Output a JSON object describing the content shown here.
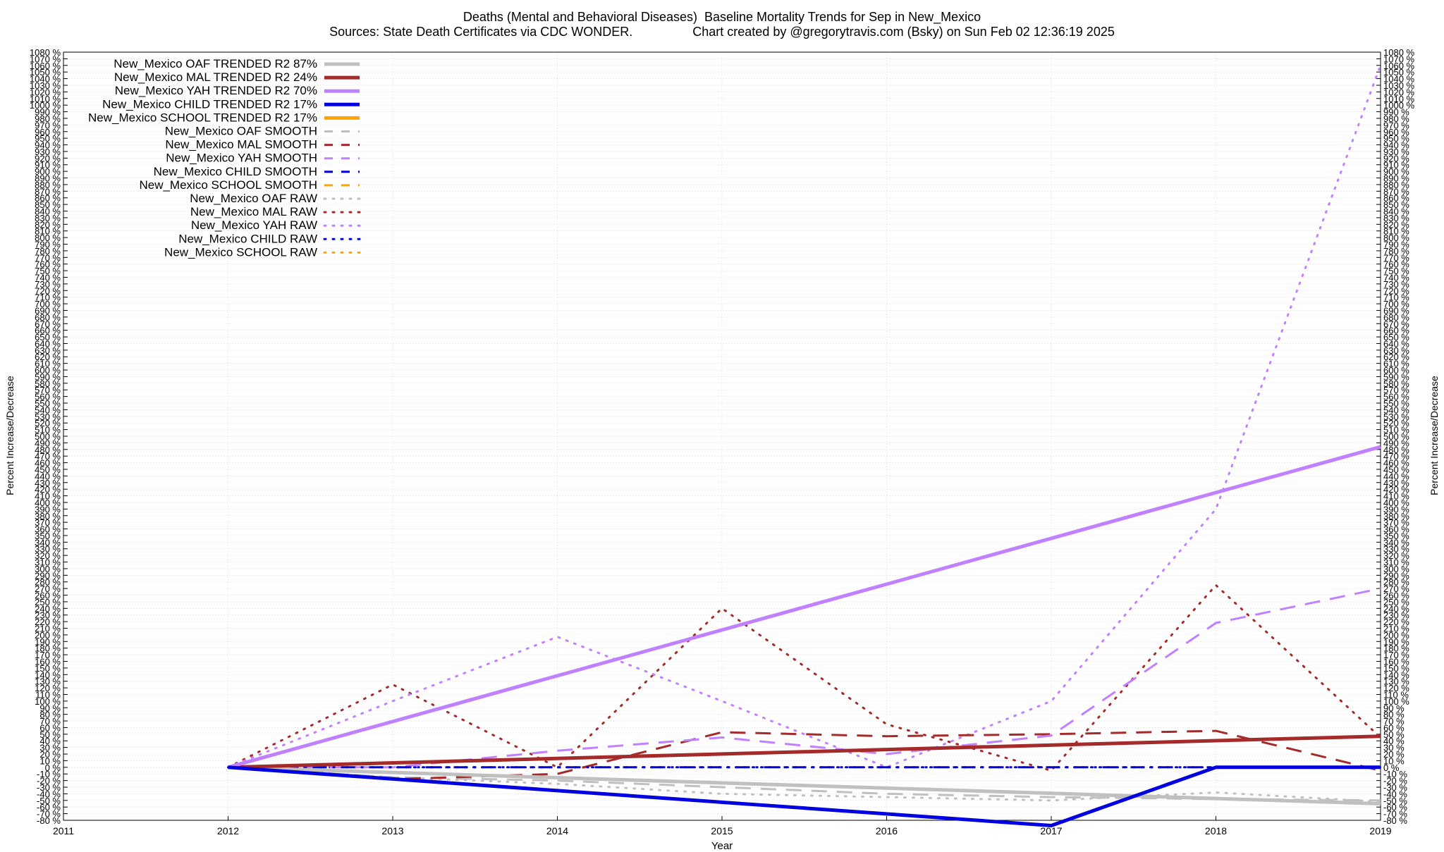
{
  "title": {
    "line1": "Deaths (Mental and Behavioral Diseases)  Baseline Mortality Trends for Sep in New_Mexico",
    "line2": "Sources: State Death Certificates via CDC WONDER.                 Chart created by @gregorytravis.com (Bsky) on Sun Feb 02 12:36:19 2025"
  },
  "chart_data": {
    "type": "line",
    "xlabel": "Year",
    "ylabel_left": "Percent Increase/Decrease",
    "ylabel_right": "Percent Increase/Decrease",
    "xlim": [
      2011,
      2019
    ],
    "ylim": [
      -80,
      1080
    ],
    "x_ticks": [
      2011,
      2012,
      2013,
      2014,
      2015,
      2016,
      2017,
      2018,
      2019
    ],
    "y_tick_step": 10,
    "y_tick_suffix": " %",
    "grid": true,
    "legend_position": "top-left",
    "series": [
      {
        "name": "New_Mexico OAF TRENDED R2  87%",
        "style": "trend",
        "color": "#c0c0c0",
        "x": [
          2012,
          2019
        ],
        "y": [
          0,
          -55
        ]
      },
      {
        "name": "New_Mexico MAL TRENDED R2  24%",
        "style": "trend",
        "color": "#a52a2a",
        "x": [
          2012,
          2019
        ],
        "y": [
          0,
          47
        ]
      },
      {
        "name": "New_Mexico YAH TRENDED R2  70%",
        "style": "trend",
        "color": "#c080ff",
        "x": [
          2012,
          2019
        ],
        "y": [
          0,
          484
        ]
      },
      {
        "name": "New_Mexico CHILD TRENDED R2  17%",
        "style": "trend",
        "color": "#0000e0",
        "x": [
          2012,
          2017,
          2018,
          2019
        ],
        "y": [
          0,
          -88,
          0,
          0
        ]
      },
      {
        "name": "New_Mexico SCHOOL TRENDED R2  17%",
        "style": "trend",
        "color": "#ffa500",
        "x": [],
        "y": []
      },
      {
        "name": "New_Mexico OAF SMOOTH",
        "style": "smooth",
        "color": "#c0c0c0",
        "x": [
          2012,
          2013,
          2014,
          2015,
          2016,
          2017,
          2018,
          2019
        ],
        "y": [
          0,
          -15,
          -20,
          -30,
          -40,
          -45,
          -48,
          -50
        ]
      },
      {
        "name": "New_Mexico MAL SMOOTH",
        "style": "smooth",
        "color": "#a52a2a",
        "x": [
          2012,
          2013,
          2014,
          2015,
          2016,
          2017,
          2018,
          2019
        ],
        "y": [
          0,
          -18,
          -10,
          53,
          47,
          50,
          55,
          -5
        ]
      },
      {
        "name": "New_Mexico YAH SMOOTH",
        "style": "smooth",
        "color": "#c080ff",
        "x": [
          2012,
          2013,
          2014,
          2015,
          2016,
          2017,
          2018,
          2019
        ],
        "y": [
          0,
          0,
          25,
          45,
          20,
          48,
          218,
          270
        ]
      },
      {
        "name": "New_Mexico CHILD SMOOTH",
        "style": "smooth",
        "color": "#0000e0",
        "x": [
          2012,
          2018,
          2019
        ],
        "y": [
          0,
          0,
          0
        ]
      },
      {
        "name": "New_Mexico SCHOOL SMOOTH",
        "style": "smooth",
        "color": "#ffa500",
        "x": [],
        "y": []
      },
      {
        "name": "New_Mexico OAF RAW",
        "style": "raw",
        "color": "#c0c0c0",
        "x": [
          2012,
          2013,
          2014,
          2015,
          2016,
          2017,
          2018,
          2019
        ],
        "y": [
          0,
          -15,
          -25,
          -40,
          -45,
          -50,
          -38,
          -52
        ]
      },
      {
        "name": "New_Mexico MAL RAW",
        "style": "raw",
        "color": "#a52a2a",
        "x": [
          2012,
          2013,
          2014,
          2015,
          2016,
          2017,
          2018,
          2019
        ],
        "y": [
          0,
          125,
          0,
          240,
          65,
          -5,
          275,
          45
        ]
      },
      {
        "name": "New_Mexico YAH RAW",
        "style": "raw",
        "color": "#c080ff",
        "x": [
          2012,
          2013,
          2014,
          2015,
          2016,
          2017,
          2018,
          2019
        ],
        "y": [
          0,
          100,
          197,
          100,
          0,
          100,
          390,
          1060
        ]
      },
      {
        "name": "New_Mexico CHILD RAW",
        "style": "raw",
        "color": "#0000e0",
        "x": [
          2012,
          2018,
          2019
        ],
        "y": [
          0,
          0,
          0
        ]
      },
      {
        "name": "New_Mexico SCHOOL RAW",
        "style": "raw",
        "color": "#ffa500",
        "x": [],
        "y": []
      }
    ]
  }
}
